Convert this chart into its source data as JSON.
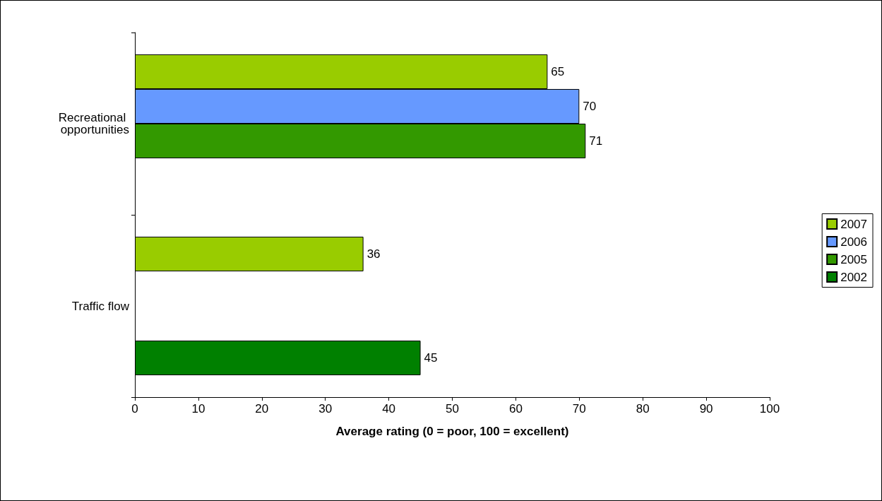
{
  "chart_data": {
    "type": "bar",
    "orientation": "horizontal",
    "xlabel": "Average rating (0 = poor, 100 = excellent)",
    "categories": [
      "Recreational opportunities",
      "Traffic flow"
    ],
    "series": [
      {
        "name": "2007",
        "color": "#99cc00",
        "values": [
          65,
          36
        ]
      },
      {
        "name": "2006",
        "color": "#6699ff",
        "values": [
          70,
          null
        ]
      },
      {
        "name": "2005",
        "color": "#339900",
        "values": [
          71,
          null
        ]
      },
      {
        "name": "2002",
        "color": "#008000",
        "values": [
          null,
          45
        ]
      }
    ],
    "xlim": [
      0,
      100
    ],
    "xticks": [
      0,
      10,
      20,
      30,
      40,
      50,
      60,
      70,
      80,
      90,
      100
    ],
    "data_labels": true,
    "legend": "right",
    "grid": false
  }
}
